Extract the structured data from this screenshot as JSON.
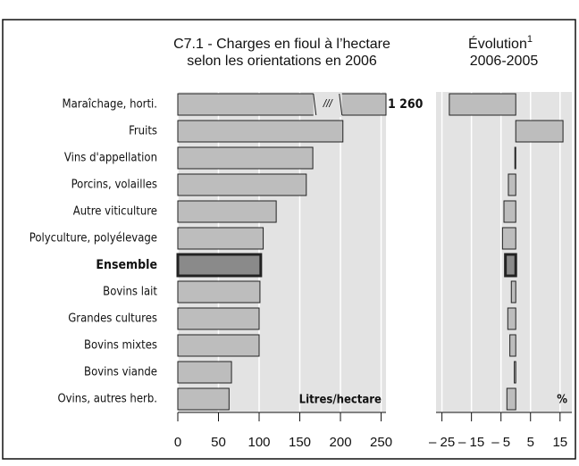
{
  "chart_data": [
    {
      "type": "bar",
      "orientation": "horizontal",
      "title": [
        "C7.1 - Charges en fioul à l’hectare",
        "selon les orientations en 2006"
      ],
      "categories": [
        "Maraîchage, horti.",
        "Fruits",
        "Vins d'appellation",
        "Porcins, volailles",
        "Autre viticulture",
        "Polyculture, polyélevage",
        "Ensemble",
        "Bovins lait",
        "Grandes cultures",
        "Bovins mixtes",
        "Bovins viande",
        "Ovins, autres herb."
      ],
      "values": [
        1260,
        203,
        166,
        158,
        121,
        105,
        102,
        101,
        100,
        100,
        66,
        63
      ],
      "value_labels": [
        "1 260",
        null,
        null,
        null,
        null,
        null,
        null,
        null,
        null,
        null,
        null,
        null
      ],
      "break_label": "///",
      "highlight": 6,
      "color": "#bdbdbd",
      "highlight_color": "#8a8a8a",
      "xlim": [
        0,
        256
      ],
      "xticks": [
        0,
        50,
        100,
        150,
        200,
        250
      ],
      "unit_label": "Litres/hectare",
      "grid": true
    },
    {
      "type": "bar",
      "orientation": "horizontal",
      "title": [
        "Évolution",
        "2006-2005"
      ],
      "title_sup": "1",
      "values": [
        -22.5,
        16,
        -0.3,
        -2.5,
        -4,
        -4.5,
        -3.5,
        -1.5,
        -2.7,
        -2,
        -0.5,
        -3
      ],
      "highlight": 6,
      "color": "#bdbdbd",
      "highlight_color": "#8a8a8a",
      "xlim": [
        -27,
        19
      ],
      "xticks": [
        {
          "value": -25,
          "label": "– 25"
        },
        {
          "value": -15,
          "label": "– 15"
        },
        {
          "value": -5,
          "label": "– 5"
        },
        5,
        15
      ],
      "unit_label": "%",
      "grid": true
    }
  ]
}
